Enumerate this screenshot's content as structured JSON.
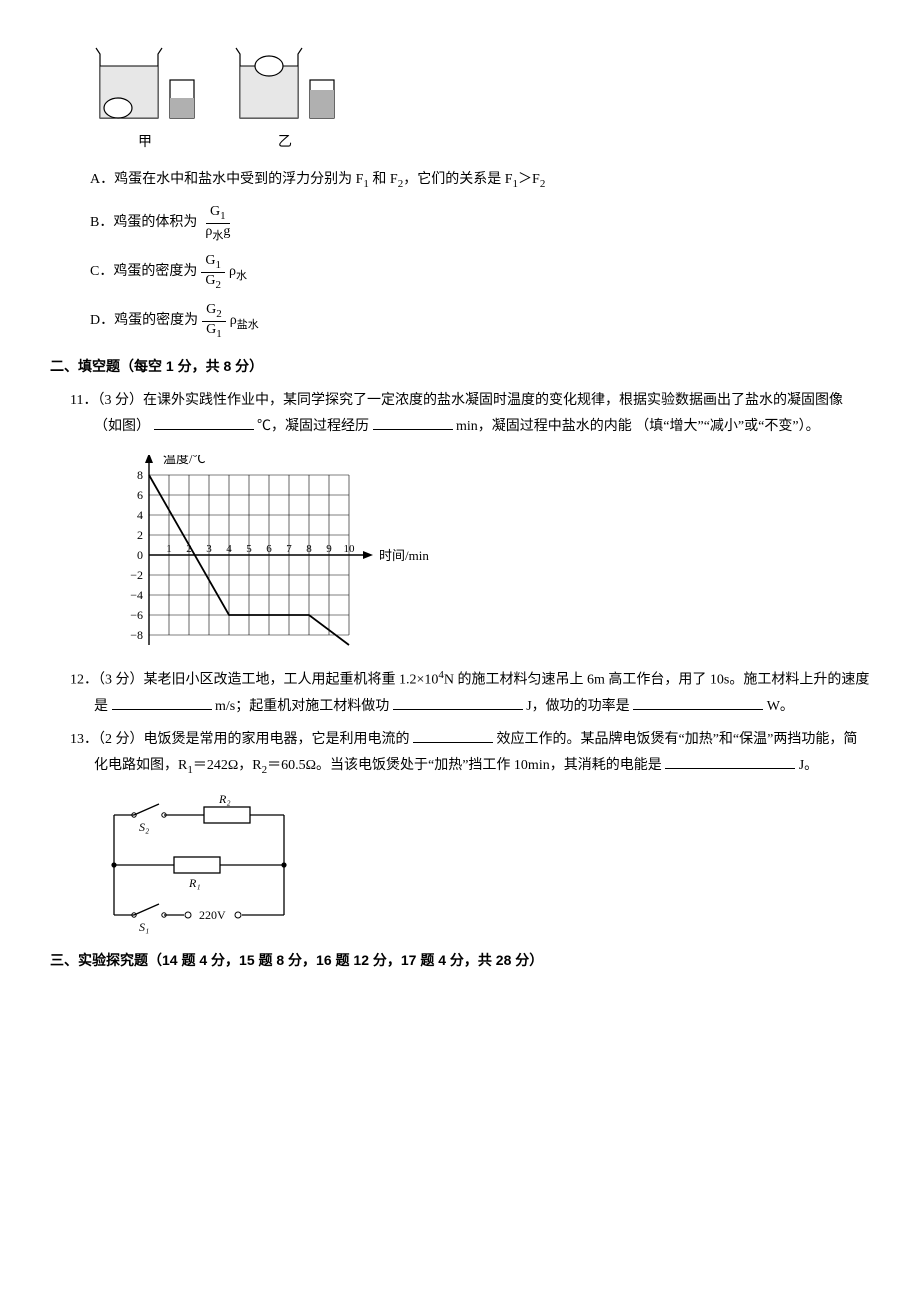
{
  "beaker_labels": {
    "left": "甲",
    "right": "乙"
  },
  "options": {
    "A_letter": "A．",
    "A_text_1": "鸡蛋在水中和盐水中受到的浮力分别为 F",
    "A_sub1": "1",
    "A_text_2": " 和 F",
    "A_sub2": "2",
    "A_text_3": "，它们的关系是 F",
    "A_sub3": "1",
    "A_text_4": "＞F",
    "A_sub4": "2",
    "B_letter": "B．",
    "B_text": "鸡蛋的体积为",
    "B_num_g": "G",
    "B_num_sub": "1",
    "B_den_rho": "ρ",
    "B_den_sub": "水",
    "B_den_g": "g",
    "C_letter": "C．",
    "C_text": "鸡蛋的密度为",
    "C_num_g": "G",
    "C_num_sub": "1",
    "C_den_g": "G",
    "C_den_sub": "2",
    "C_rho": "ρ",
    "C_rho_sub": "水",
    "D_letter": "D．",
    "D_text": "鸡蛋的密度为",
    "D_num_g": "G",
    "D_num_sub": "2",
    "D_den_g": "G",
    "D_den_sub": "1",
    "D_rho": "ρ",
    "D_rho_sub": "盐水"
  },
  "section2": {
    "heading": "二、填空题（每空 1 分，共 8 分）",
    "q11_prefix": "11．（3 分）在课外实践性作业中，某同学探究了一定浓度的盐水凝固时温度的变化规律，根据实验数据画出了盐水的凝固图像（如图）",
    "q11_unit1": "℃，凝固过程经历",
    "q11_unit2": "min，凝固过程中盐水的内能",
    "q11_tail": "（填“增大”“减小”或“不变”）。",
    "graph": {
      "y_label": "温度/℃",
      "x_label": "时间/min",
      "y_ticks": [
        "8",
        "6",
        "4",
        "2",
        "0",
        "−2",
        "−4",
        "−6",
        "−8"
      ],
      "x_ticks": [
        "1",
        "2",
        "3",
        "4",
        "5",
        "6",
        "7",
        "8",
        "9",
        "10"
      ],
      "line_points": [
        [
          0,
          8
        ],
        [
          4,
          -6
        ],
        [
          8,
          -6
        ],
        [
          10,
          -9
        ]
      ]
    },
    "q12_prefix": "12．（3 分）某老旧小区改造工地，工人用起重机将重 1.2×10",
    "q12_exp": "4",
    "q12_text2": "N 的施工材料匀速吊上 6m 高工作台，用了 10s。施工材料上升的速度是",
    "q12_unit1": "m/s；起重机对施工材料做功",
    "q12_unit2": "J，做功的功率是",
    "q12_unit3": "W。",
    "q13_prefix": "13．（2 分）电饭煲是常用的家用电器，它是利用电流的",
    "q13_text2": "效应工作的。某品牌电饭煲有“加热”和“保温”两挡功能，简化电路如图，R",
    "q13_r1sub": "1",
    "q13_r1val": "＝242Ω，R",
    "q13_r2sub": "2",
    "q13_r2val": "＝60.5Ω。当该电饭煲处于“加热”挡工作 10min，其消耗的电能是",
    "q13_unit": "J。",
    "circuit": {
      "S1": "S₁",
      "S2": "S₂",
      "R1": "R₁",
      "R2": "R₂",
      "V": "220V"
    }
  },
  "section3": {
    "heading": "三、实验探究题（14 题 4 分，15 题 8 分，16 题 12 分，17 题 4 分，共 28 分）"
  }
}
